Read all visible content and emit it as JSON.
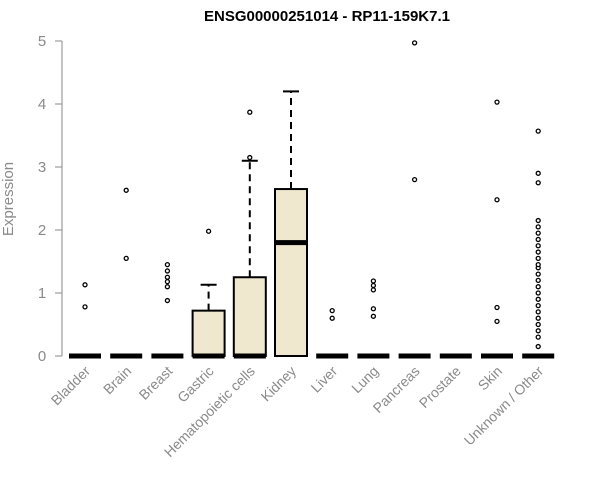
{
  "chart_data": {
    "type": "boxplot",
    "title": "ENSG00000251014 - RP11-159K7.1",
    "xlabel": "",
    "ylabel": "Expression",
    "ylim": [
      0,
      5
    ],
    "yticks": [
      0,
      1,
      2,
      3,
      4,
      5
    ],
    "box_fill": "#efe8cf",
    "categories": [
      "Bladder",
      "Brain",
      "Breast",
      "Gastric",
      "Hematopoietic cells",
      "Kidney",
      "Liver",
      "Lung",
      "Pancreas",
      "Prostate",
      "Skin",
      "Unknown / Other"
    ],
    "boxes": [
      {
        "q1": 0,
        "median": 0,
        "q3": 0,
        "whisker_low": 0,
        "whisker_high": 0,
        "outliers": [
          0.78,
          1.13
        ]
      },
      {
        "q1": 0,
        "median": 0,
        "q3": 0,
        "whisker_low": 0,
        "whisker_high": 0,
        "outliers": [
          1.55,
          2.63
        ]
      },
      {
        "q1": 0,
        "median": 0,
        "q3": 0,
        "whisker_low": 0,
        "whisker_high": 0,
        "outliers": [
          0.88,
          1.1,
          1.18,
          1.25,
          1.35,
          1.45
        ]
      },
      {
        "q1": 0,
        "median": 0,
        "q3": 0.72,
        "whisker_low": 0,
        "whisker_high": 1.13,
        "outliers": [
          1.98
        ]
      },
      {
        "q1": 0,
        "median": 0,
        "q3": 1.25,
        "whisker_low": 0,
        "whisker_high": 3.1,
        "outliers": [
          3.15,
          3.87
        ]
      },
      {
        "q1": 0,
        "median": 1.8,
        "q3": 2.65,
        "whisker_low": 0,
        "whisker_high": 4.2,
        "outliers": []
      },
      {
        "q1": 0,
        "median": 0,
        "q3": 0,
        "whisker_low": 0,
        "whisker_high": 0,
        "outliers": [
          0.6,
          0.72
        ]
      },
      {
        "q1": 0,
        "median": 0,
        "q3": 0,
        "whisker_low": 0,
        "whisker_high": 0,
        "outliers": [
          0.63,
          0.75,
          1.05,
          1.12,
          1.19
        ]
      },
      {
        "q1": 0,
        "median": 0,
        "q3": 0,
        "whisker_low": 0,
        "whisker_high": 0,
        "outliers": [
          2.8,
          4.97
        ]
      },
      {
        "q1": 0,
        "median": 0,
        "q3": 0,
        "whisker_low": 0,
        "whisker_high": 0,
        "outliers": []
      },
      {
        "q1": 0,
        "median": 0,
        "q3": 0,
        "whisker_low": 0,
        "whisker_high": 0,
        "outliers": [
          0.55,
          0.77,
          2.48,
          4.03
        ]
      },
      {
        "q1": 0,
        "median": 0,
        "q3": 0,
        "whisker_low": 0,
        "whisker_high": 0,
        "outliers": [
          0.15,
          0.3,
          0.4,
          0.5,
          0.6,
          0.7,
          0.8,
          0.9,
          1.0,
          1.1,
          1.2,
          1.3,
          1.4,
          1.45,
          1.55,
          1.65,
          1.75,
          1.85,
          1.95,
          2.05,
          2.15,
          2.75,
          2.9,
          3.57
        ]
      }
    ]
  }
}
